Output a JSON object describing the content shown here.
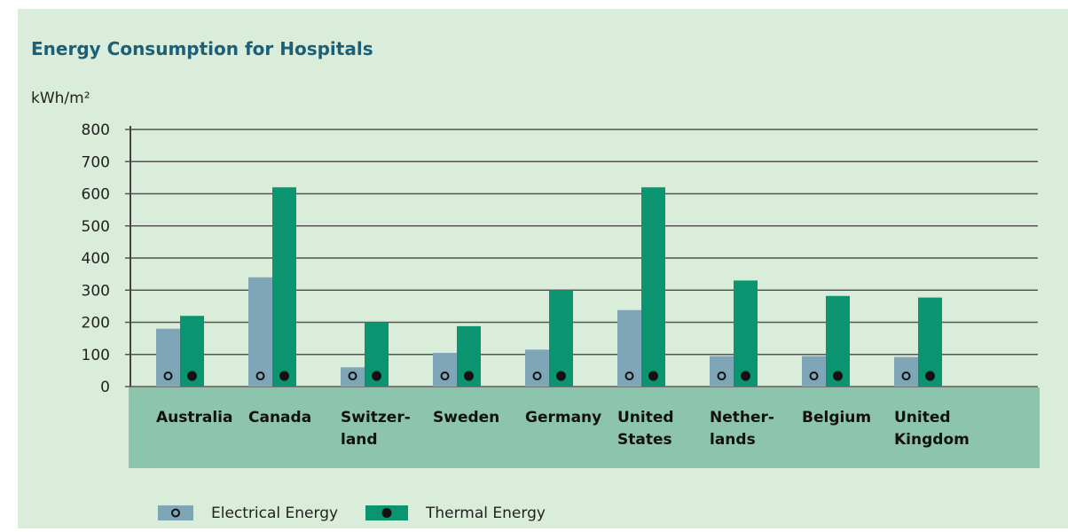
{
  "chart_data": {
    "type": "bar",
    "title": "Energy Consumption for Hospitals",
    "y_label": "kWh/m²",
    "categories": [
      "Australia",
      "Canada",
      "Switzer-\nland",
      "Sweden",
      "Germany",
      "United\nStates",
      "Nether-\nlands",
      "Belgium",
      "United\nKingdom"
    ],
    "series": [
      {
        "name": "Electrical Energy",
        "color": "#7fa6b7",
        "values": [
          180,
          340,
          60,
          105,
          115,
          238,
          95,
          95,
          92
        ]
      },
      {
        "name": "Thermal Energy",
        "color": "#0a9470",
        "values": [
          220,
          620,
          200,
          188,
          300,
          620,
          330,
          282,
          277
        ]
      }
    ],
    "ylim": [
      0,
      800
    ],
    "yticks": [
      0,
      100,
      200,
      300,
      400,
      500,
      600,
      700,
      800
    ],
    "grid": true,
    "legend": "bottom"
  }
}
